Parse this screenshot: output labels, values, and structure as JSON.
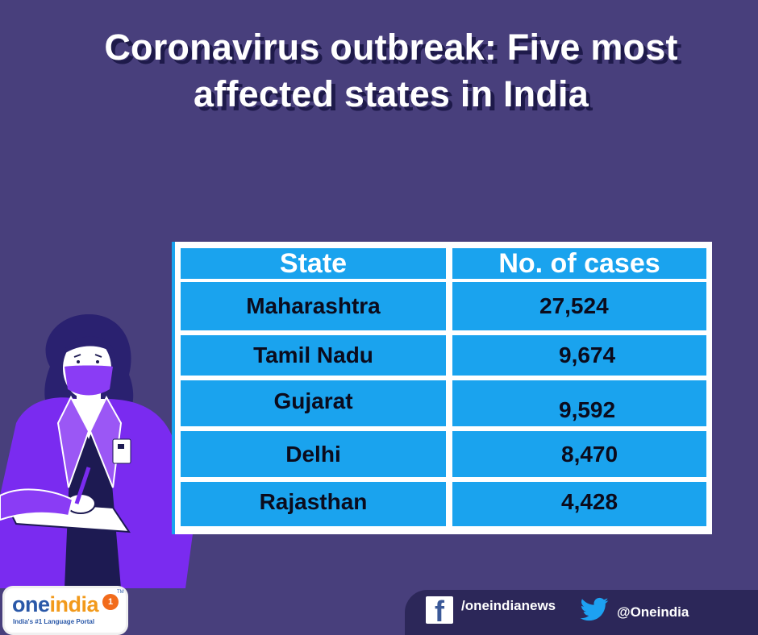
{
  "title": {
    "line1": "Coronavirus outbreak: Five most",
    "line2": "affected states in India"
  },
  "table": {
    "headers": [
      "State",
      "No. of cases"
    ],
    "rows": [
      {
        "state": "Maharashtra",
        "cases": "27,524"
      },
      {
        "state": "Tamil Nadu",
        "cases": "9,674"
      },
      {
        "state": "Gujarat",
        "cases": "9,592"
      },
      {
        "state": "Delhi",
        "cases": "8,470"
      },
      {
        "state": "Rajasthan",
        "cases": "4,428"
      }
    ]
  },
  "social": {
    "facebook": "/oneindianews",
    "twitter": "@Oneindia"
  },
  "logo": {
    "word_one": "one",
    "word_india": "india",
    "tagline": "India's #1 Language Portal",
    "badge": "1",
    "tm": "TM"
  },
  "colors": {
    "background": "#483f7c",
    "table_cell": "#1aa3ee",
    "title_shadow": "#1e1a4a",
    "social_bar": "#2c2759",
    "illustration_coat": "#7a2bf0"
  },
  "icons": [
    "facebook-icon",
    "twitter-icon"
  ]
}
